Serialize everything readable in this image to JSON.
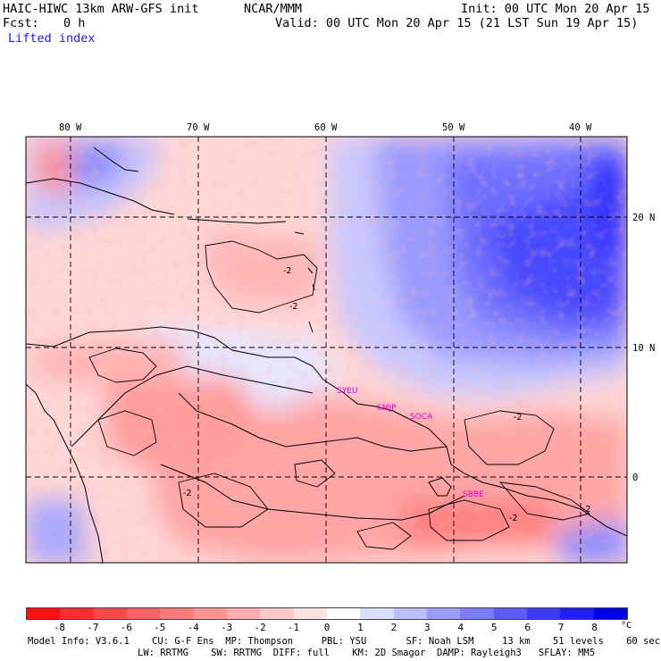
{
  "header": {
    "model": "HAIC-HIWC 13km ARW-GFS init",
    "org": "NCAR/MMM",
    "init": "Init: 00 UTC Mon 20 Apr 15",
    "fcst_label": "Fcst:",
    "fcst_value": "0 h",
    "valid": "Valid: 00 UTC Mon 20 Apr 15 (21 LST Sun 19 Apr 15)",
    "field": "Lifted index"
  },
  "map": {
    "lon_labels": [
      "80 W",
      "70 W",
      "60 W",
      "50 W",
      "40 W"
    ],
    "lat_labels": [
      "20 N",
      "10 N",
      "0"
    ],
    "stations": [
      "SYEU",
      "SMJP",
      "SOCA",
      "SBBE"
    ],
    "contour_labels": [
      "-2",
      "-2",
      "-2",
      "-2",
      "-2",
      "-2"
    ]
  },
  "legend": {
    "ticks": [
      "-8",
      "-7",
      "-6",
      "-5",
      "-4",
      "-3",
      "-2",
      "-1",
      "0",
      "1",
      "2",
      "3",
      "4",
      "5",
      "6",
      "7",
      "8"
    ],
    "unit": "°C",
    "colors": [
      "#ff1010",
      "#ff2e2e",
      "#ff4848",
      "#ff6060",
      "#ff7a7a",
      "#ff9494",
      "#ffadad",
      "#ffc8c8",
      "#ffe3e3",
      "#ffffff",
      "#dcdcff",
      "#bcbcff",
      "#9c9cff",
      "#7c7cff",
      "#5c5cff",
      "#3c3cff",
      "#1e1eff",
      "#0000e8"
    ]
  },
  "footer": {
    "line1": "Model Info: V3.6.1    CU: G-F Ens  MP: Thompson     PBL: YSU       SF: Noah LSM     13 km    51 levels    60 sec",
    "line2": "LW: RRTMG    SW: RRTMG  DIFF: full    KM: 2D Smagor  DAMP: Rayleigh3   SFLAY: MM5"
  }
}
